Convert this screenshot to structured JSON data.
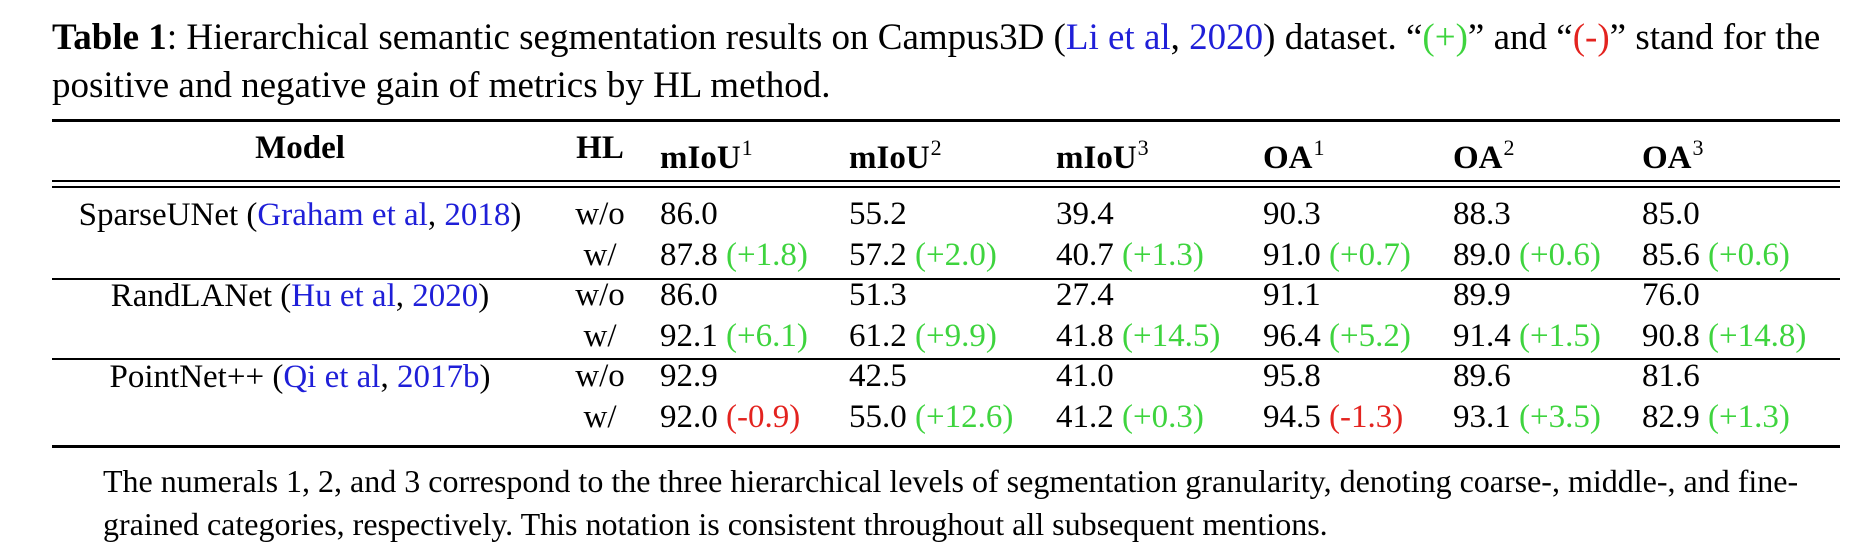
{
  "caption": {
    "label": "Table 1",
    "text_1": ": Hierarchical semantic segmentation results on Campus3D (",
    "cite_author": "Li et al",
    "cite_sep": ", ",
    "cite_year": "2020",
    "text_2": ") dataset. “",
    "plus_token": "(+)",
    "text_3": "” and “",
    "minus_token": "(-)",
    "text_4": "” stand for the positive and negative gain of metrics by HL method."
  },
  "table": {
    "headers": [
      "Model",
      "HL",
      "mIoU",
      "mIoU",
      "mIoU",
      "OA",
      "OA",
      "OA"
    ],
    "header_sups": [
      "",
      "",
      "1",
      "2",
      "3",
      "1",
      "2",
      "3"
    ],
    "groups": [
      {
        "model": "SparseUNet",
        "cite_author": "Graham et al",
        "cite_year": "2018",
        "rows": [
          {
            "hl": "w/o",
            "cells": [
              {
                "v": "86.0",
                "d": ""
              },
              {
                "v": "55.2",
                "d": ""
              },
              {
                "v": "39.4",
                "d": ""
              },
              {
                "v": "90.3",
                "d": ""
              },
              {
                "v": "88.3",
                "d": ""
              },
              {
                "v": "85.0",
                "d": ""
              }
            ]
          },
          {
            "hl": "w/",
            "cells": [
              {
                "v": "87.8",
                "d": "(+1.8)"
              },
              {
                "v": "57.2",
                "d": "(+2.0)"
              },
              {
                "v": "40.7",
                "d": "(+1.3)"
              },
              {
                "v": "91.0",
                "d": "(+0.7)"
              },
              {
                "v": "89.0",
                "d": "(+0.6)"
              },
              {
                "v": "85.6",
                "d": "(+0.6)"
              }
            ]
          }
        ]
      },
      {
        "model": "RandLANet",
        "cite_author": "Hu et al",
        "cite_year": "2020",
        "rows": [
          {
            "hl": "w/o",
            "cells": [
              {
                "v": "86.0",
                "d": ""
              },
              {
                "v": "51.3",
                "d": ""
              },
              {
                "v": "27.4",
                "d": ""
              },
              {
                "v": "91.1",
                "d": ""
              },
              {
                "v": "89.9",
                "d": ""
              },
              {
                "v": "76.0",
                "d": ""
              }
            ]
          },
          {
            "hl": "w/",
            "cells": [
              {
                "v": "92.1",
                "d": "(+6.1)"
              },
              {
                "v": "61.2",
                "d": "(+9.9)"
              },
              {
                "v": "41.8",
                "d": "(+14.5)"
              },
              {
                "v": "96.4",
                "d": "(+5.2)"
              },
              {
                "v": "91.4",
                "d": "(+1.5)"
              },
              {
                "v": "90.8",
                "d": "(+14.8)"
              }
            ]
          }
        ]
      },
      {
        "model": "PointNet++",
        "cite_author": "Qi et al",
        "cite_year": "2017b",
        "rows": [
          {
            "hl": "w/o",
            "cells": [
              {
                "v": "92.9",
                "d": ""
              },
              {
                "v": "42.5",
                "d": ""
              },
              {
                "v": "41.0",
                "d": ""
              },
              {
                "v": "95.8",
                "d": ""
              },
              {
                "v": "89.6",
                "d": ""
              },
              {
                "v": "81.6",
                "d": ""
              }
            ]
          },
          {
            "hl": "w/",
            "cells": [
              {
                "v": "92.0",
                "d": "(-0.9)"
              },
              {
                "v": "55.0",
                "d": "(+12.6)"
              },
              {
                "v": "41.2",
                "d": "(+0.3)"
              },
              {
                "v": "94.5",
                "d": "(-1.3)"
              },
              {
                "v": "93.1",
                "d": "(+3.5)"
              },
              {
                "v": "82.9",
                "d": "(+1.3)"
              }
            ]
          }
        ]
      }
    ]
  },
  "note": "The numerals 1, 2, and 3 correspond to the three hierarchical levels of segmentation granularity, denoting coarse-, middle-, and fine-grained categories, respectively. This notation is consistent throughout all subsequent mentions.",
  "colors": {
    "positive": "#3ed43e",
    "negative": "#e3231f",
    "citation": "#1f1fd8"
  }
}
